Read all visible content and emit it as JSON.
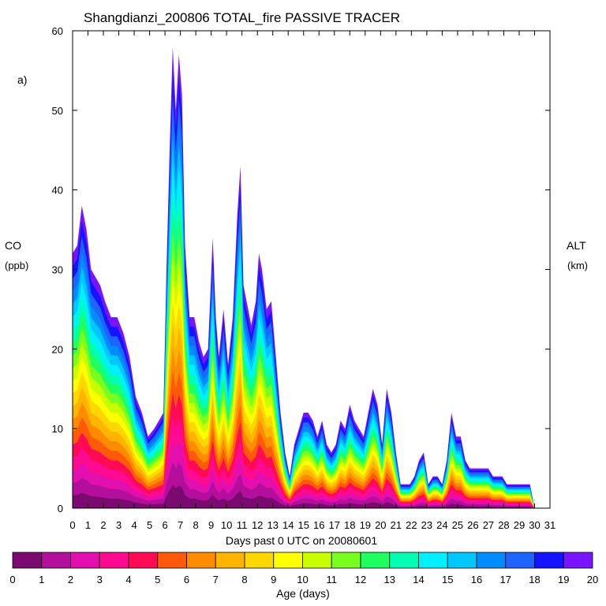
{
  "chart_data": {
    "type": "area",
    "title": "Shangdianzi_200806 TOTAL_fire PASSIVE TRACER",
    "panel_label": "a)",
    "xlabel": "Days past 0 UTC on 20080601",
    "ylabel_left": [
      "CO",
      "(ppb)"
    ],
    "ylabel_right": [
      "ALT",
      "(km)"
    ],
    "xlim": [
      0,
      31
    ],
    "ylim": [
      0,
      60
    ],
    "x_ticks": [
      0,
      1,
      2,
      3,
      4,
      5,
      6,
      7,
      8,
      9,
      10,
      11,
      12,
      13,
      14,
      15,
      16,
      17,
      18,
      19,
      20,
      21,
      22,
      23,
      24,
      25,
      26,
      27,
      28,
      29,
      30,
      31
    ],
    "y_ticks": [
      0,
      10,
      20,
      30,
      40,
      50,
      60
    ],
    "colorbar": {
      "label": "Age (days)",
      "ticks": [
        0,
        1,
        2,
        3,
        4,
        5,
        6,
        7,
        8,
        9,
        10,
        11,
        12,
        13,
        14,
        15,
        16,
        17,
        18,
        19,
        20
      ],
      "colors": [
        "#7a0a70",
        "#b40f9c",
        "#e10fae",
        "#ff0a90",
        "#ff0a55",
        "#ff5a0a",
        "#ff8c00",
        "#ffb400",
        "#ffd700",
        "#ffff00",
        "#c8ff00",
        "#78ff20",
        "#20ff60",
        "#00ffb4",
        "#00f0ff",
        "#00c8ff",
        "#008cff",
        "#1e64ff",
        "#1414ff",
        "#7814ff"
      ]
    },
    "total_co_series": {
      "x": [
        0,
        0.3,
        0.6,
        0.9,
        1.2,
        1.5,
        1.8,
        2.1,
        2.5,
        2.9,
        3.3,
        3.7,
        4.1,
        4.5,
        4.9,
        5.3,
        5.6,
        5.9,
        6.1,
        6.3,
        6.5,
        6.7,
        6.9,
        7.1,
        7.3,
        7.6,
        7.9,
        8.2,
        8.5,
        8.8,
        9.1,
        9.3,
        9.5,
        9.8,
        10.1,
        10.4,
        10.7,
        10.9,
        11.1,
        11.3,
        11.6,
        11.9,
        12.1,
        12.3,
        12.6,
        12.9,
        13.2,
        13.5,
        13.8,
        14.1,
        14.4,
        14.7,
        15.0,
        15.3,
        15.6,
        15.9,
        16.2,
        16.5,
        16.8,
        17.1,
        17.4,
        17.7,
        18.0,
        18.3,
        18.6,
        18.9,
        19.2,
        19.5,
        19.8,
        20.1,
        20.4,
        20.7,
        21.0,
        21.3,
        21.6,
        21.9,
        22.2,
        22.5,
        22.8,
        23.1,
        23.4,
        23.7,
        24.0,
        24.3,
        24.6,
        24.9,
        25.2,
        25.5,
        25.8,
        26.1,
        26.4,
        26.7,
        27.0,
        27.3,
        27.6,
        27.9,
        28.2,
        28.5,
        28.8,
        29.1,
        29.4,
        29.7,
        30.0
      ],
      "values": [
        32,
        33,
        38,
        35,
        30,
        29,
        28,
        26,
        24,
        24,
        22,
        19,
        14,
        12,
        9,
        10,
        11,
        12,
        30,
        45,
        58,
        50,
        57,
        52,
        33,
        24,
        24,
        21,
        19,
        20,
        34,
        24,
        19,
        25,
        18,
        24,
        37,
        43,
        28,
        26,
        23,
        26,
        32,
        30,
        25,
        26,
        19,
        12,
        7,
        4,
        8,
        10,
        12,
        12,
        11,
        9,
        11,
        8,
        7,
        8,
        11,
        10,
        13,
        11,
        10,
        9,
        12,
        15,
        13,
        8,
        15,
        12,
        7,
        3,
        3,
        3,
        4,
        6,
        7,
        3,
        4,
        4,
        3,
        6,
        12,
        9,
        9,
        6,
        5,
        5,
        5,
        5,
        5,
        4,
        4,
        4,
        3,
        3,
        3,
        3,
        3,
        3,
        0
      ]
    }
  }
}
